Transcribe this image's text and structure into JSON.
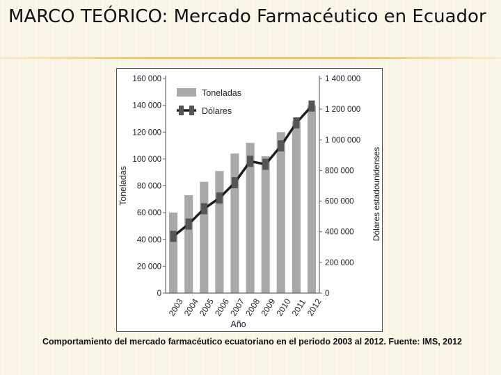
{
  "slide": {
    "title": "MARCO TEÓRICO: Mercado Farmacéutico en Ecuador",
    "caption": "Comportamiento del mercado farmacéutico ecuatoriano en el periodo 2003 al 2012. Fuente: IMS, 2012"
  },
  "colors": {
    "bar": "#a9a9a9",
    "line": "#1e1e1e",
    "marker": "#555555",
    "text": "#222222"
  },
  "chart_data": {
    "type": "bar",
    "categories": [
      "2003",
      "2004",
      "2005",
      "2006",
      "2007",
      "2008",
      "2009",
      "2010",
      "2011",
      "2012"
    ],
    "xlabel": "Año",
    "ylabel": "Toneladas",
    "y2label": "Dólares estadounidenses",
    "ylim": [
      0,
      160000
    ],
    "y2lim": [
      0,
      1400000
    ],
    "yticks": [
      "0",
      "20 000",
      "40 000",
      "60 000",
      "80 000",
      "100 000",
      "120 000",
      "140 000",
      "160 000"
    ],
    "yticks_values": [
      0,
      20000,
      40000,
      60000,
      80000,
      100000,
      120000,
      140000,
      160000
    ],
    "y2ticks": [
      "0",
      "200 000",
      "400 000",
      "600 000",
      "800 000",
      "1 000 000",
      "1 200 000",
      "1 400 000"
    ],
    "y2ticks_values": [
      0,
      200000,
      400000,
      600000,
      800000,
      1000000,
      1200000,
      1400000
    ],
    "legend_position": "top-left",
    "grid": false,
    "series": [
      {
        "name": "Toneladas",
        "type": "bar",
        "axis": "left",
        "values": [
          60000,
          73000,
          83000,
          91000,
          104000,
          112000,
          102000,
          120000,
          128000,
          140000
        ]
      },
      {
        "name": "Dólares",
        "type": "line",
        "axis": "right",
        "values": [
          370000,
          450000,
          550000,
          620000,
          720000,
          860000,
          840000,
          960000,
          1110000,
          1220000
        ]
      }
    ]
  }
}
